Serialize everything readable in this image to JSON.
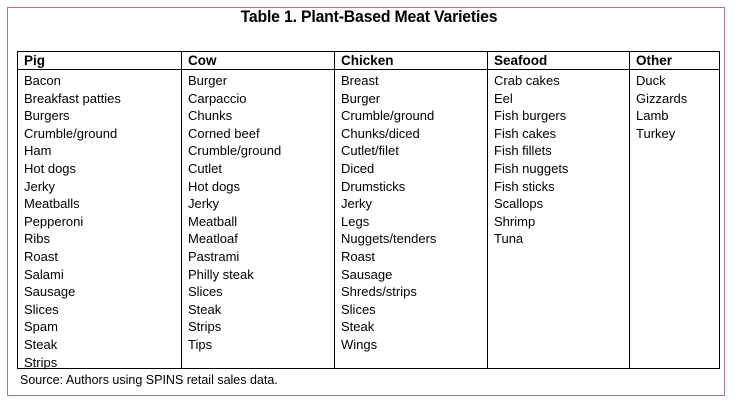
{
  "title": "Table 1. Plant-Based Meat Varieties",
  "columns": [
    {
      "header": "Pig",
      "items": [
        "Bacon",
        "Breakfast patties",
        "Burgers",
        "Crumble/ground",
        "Ham",
        "Hot dogs",
        "Jerky",
        "Meatballs",
        "Pepperoni",
        "Ribs",
        "Roast",
        "Salami",
        "Sausage",
        "Slices",
        "Spam",
        "Steak",
        "Strips"
      ]
    },
    {
      "header": "Cow",
      "items": [
        "Burger",
        "Carpaccio",
        "Chunks",
        "Corned beef",
        "Crumble/ground",
        "Cutlet",
        "Hot dogs",
        "Jerky",
        "Meatball",
        "Meatloaf",
        "Pastrami",
        "Philly steak",
        "Slices",
        "Steak",
        "Strips",
        "Tips"
      ]
    },
    {
      "header": "Chicken",
      "items": [
        "Breast",
        "Burger",
        "Crumble/ground",
        "Chunks/diced",
        "Cutlet/filet",
        "Diced",
        "Drumsticks",
        "Jerky",
        "Legs",
        "Nuggets/tenders",
        "Roast",
        "Sausage",
        "Shreds/strips",
        "Slices",
        "Steak",
        "Wings"
      ]
    },
    {
      "header": "Seafood",
      "items": [
        "Crab cakes",
        "Eel",
        "Fish burgers",
        "Fish cakes",
        "Fish fillets",
        "Fish nuggets",
        "Fish sticks",
        "Scallops",
        "Shrimp",
        "Tuna"
      ]
    },
    {
      "header": "Other",
      "items": [
        "Duck",
        "Gizzards",
        "Lamb",
        "Turkey"
      ]
    }
  ],
  "source": "Source: Authors using SPINS retail sales data."
}
